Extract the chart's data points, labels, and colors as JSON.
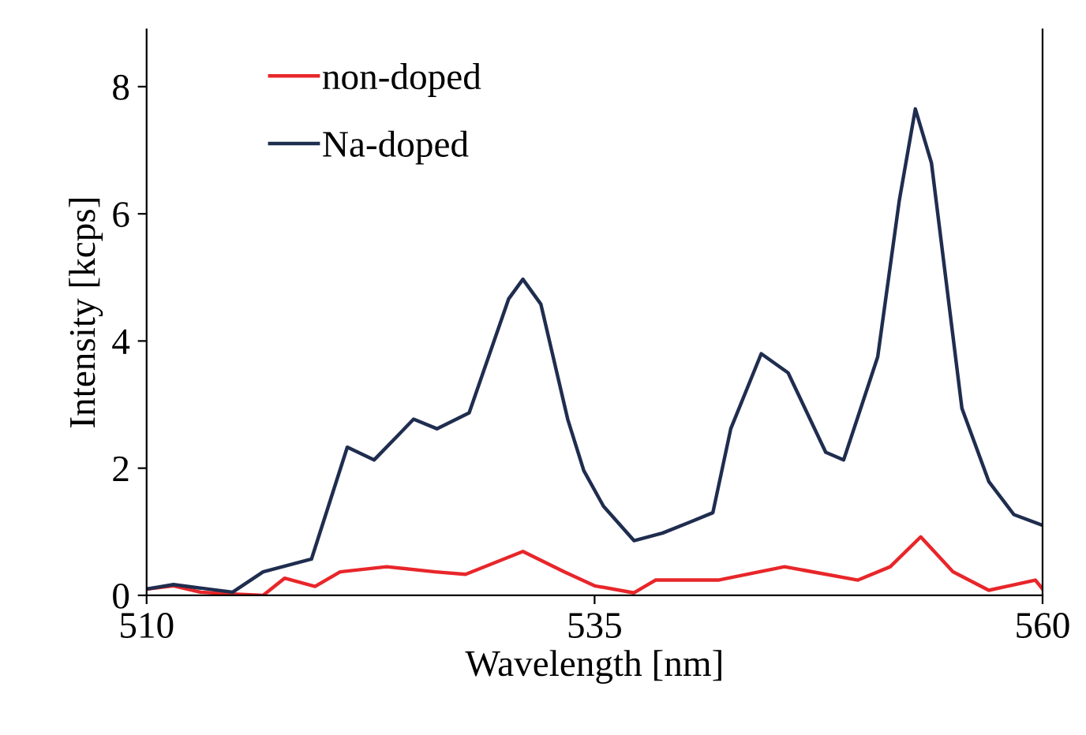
{
  "chart_data": {
    "type": "line",
    "xlabel": "Wavelength [nm]",
    "ylabel": "Intensity [kcps]",
    "xlim": [
      510,
      560
    ],
    "xticks": [
      510,
      535,
      560
    ],
    "ylim": [
      0,
      8.9
    ],
    "yticks": [
      0,
      2,
      4,
      6,
      8
    ],
    "grid": false,
    "legend": "top left",
    "series": [
      {
        "name": "non-doped",
        "color": "#e8262a",
        "x": [
          510,
          511.5,
          513,
          514.8,
          516.5,
          517.7,
          519.4,
          520.8,
          523.4,
          526.1,
          527.8,
          531.0,
          533.3,
          535.0,
          537.2,
          538.4,
          541.9,
          545.6,
          549.7,
          551.5,
          553.2,
          555.0,
          557.0,
          559.6,
          560
        ],
        "values": [
          0.1,
          0.15,
          0.05,
          0.02,
          0.0,
          0.27,
          0.14,
          0.37,
          0.45,
          0.37,
          0.33,
          0.69,
          0.37,
          0.15,
          0.04,
          0.24,
          0.24,
          0.45,
          0.24,
          0.45,
          0.92,
          0.37,
          0.08,
          0.24,
          0.1
        ]
      },
      {
        "name": "Na-doped",
        "color": "#1f2d4f",
        "x": [
          510,
          511.5,
          514.8,
          516.5,
          519.2,
          521.2,
          522.7,
          524.9,
          526.2,
          528.0,
          530.2,
          531.0,
          532.0,
          533.5,
          534.4,
          535.5,
          537.2,
          538.8,
          540.3,
          541.6,
          542.6,
          544.3,
          545.8,
          547.9,
          548.9,
          550.8,
          552.0,
          552.9,
          553.8,
          555.5,
          557.0,
          558.4,
          560
        ],
        "values": [
          0.1,
          0.17,
          0.05,
          0.37,
          0.57,
          2.33,
          2.13,
          2.77,
          2.62,
          2.87,
          4.66,
          4.97,
          4.58,
          2.77,
          1.96,
          1.4,
          0.86,
          0.98,
          1.15,
          1.3,
          2.62,
          3.8,
          3.5,
          2.25,
          2.13,
          3.75,
          6.2,
          7.65,
          6.8,
          2.94,
          1.79,
          1.27,
          1.1
        ]
      }
    ]
  }
}
